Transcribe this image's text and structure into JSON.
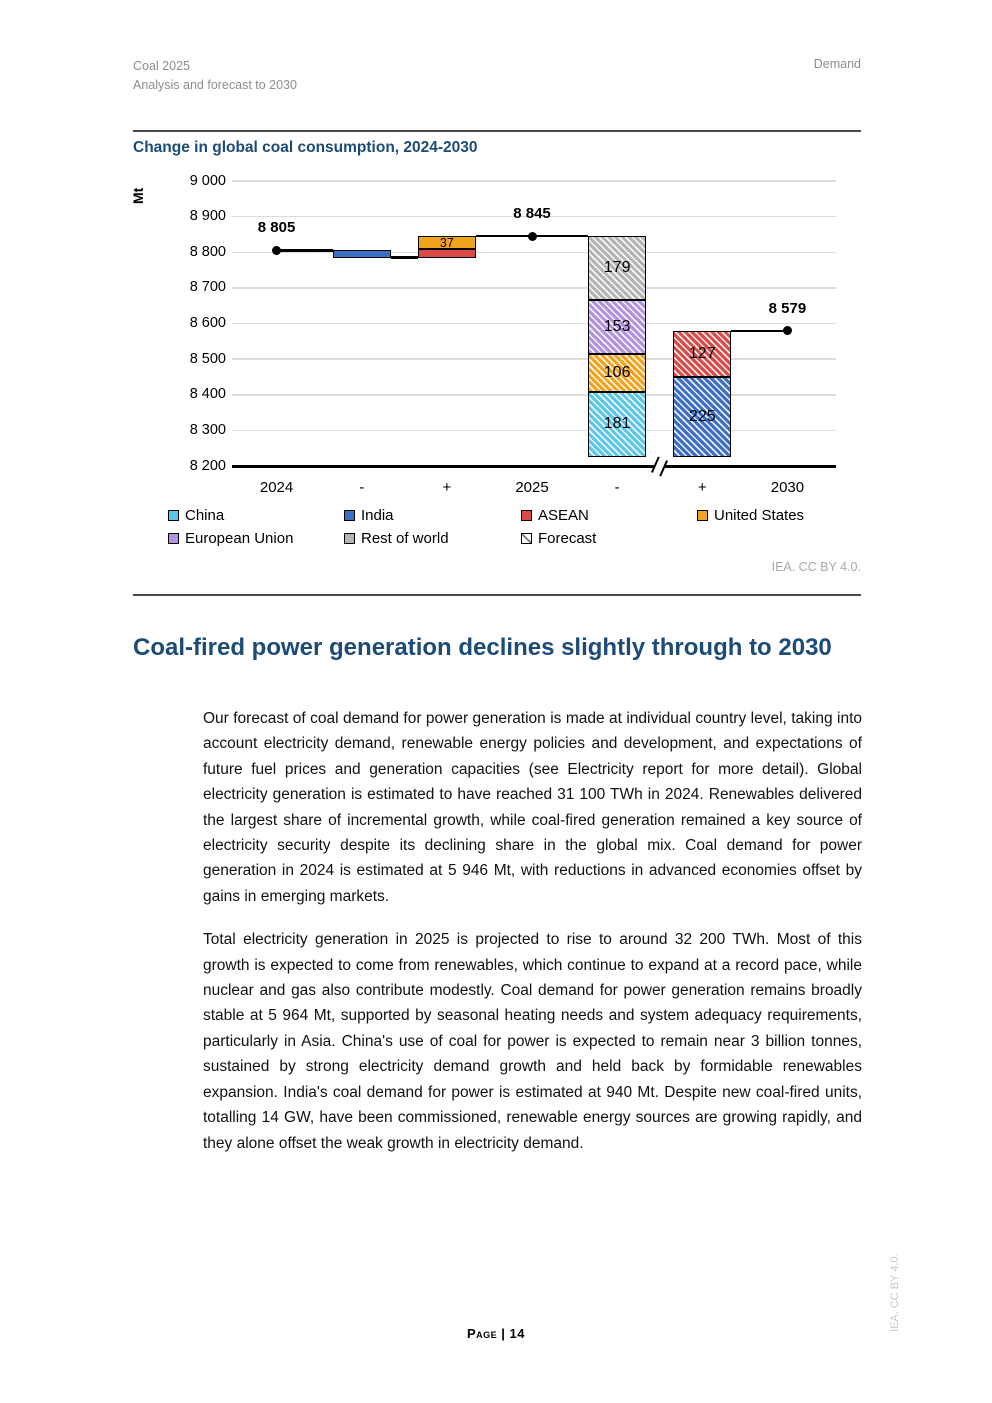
{
  "header": {
    "doc_title": "Coal 2025",
    "doc_subtitle": "Analysis and forecast to 2030",
    "chapter": "Demand"
  },
  "figure": {
    "title": "Change in global coal consumption, 2024-2030",
    "credit": "IEA. CC BY 4.0."
  },
  "chart_data": {
    "type": "waterfall",
    "title": "Change in global coal consumption, 2024-2030",
    "unit": "Mt",
    "x_categories": [
      "2024",
      "-",
      "+",
      "2025",
      "-",
      "+",
      "2030"
    ],
    "y_axis": {
      "min": 8200,
      "max": 9000,
      "step": 100,
      "tick_labels": [
        "9 000",
        "8 900",
        "8 800",
        "8 700",
        "8 600",
        "8 500",
        "8 400",
        "8 300",
        "8 200"
      ]
    },
    "anchors": [
      {
        "category_index": 0,
        "value": 8805,
        "label": "8 805"
      },
      {
        "category_index": 3,
        "value": 8845,
        "label": "8 845"
      },
      {
        "category_index": 6,
        "value": 8579,
        "label": "8 579"
      }
    ],
    "segments": [
      {
        "column": 1,
        "series": "India",
        "change": -20,
        "from": 8805,
        "to": 8785,
        "label": "",
        "hatched": false
      },
      {
        "column": 2,
        "series": "ASEAN",
        "change": 23,
        "from": 8785,
        "to": 8808,
        "label": "",
        "hatched": false
      },
      {
        "column": 2,
        "series": "United States",
        "change": 37,
        "from": 8808,
        "to": 8845,
        "label": "37",
        "hatched": false
      },
      {
        "column": 4,
        "series": "Rest of world",
        "change": -179,
        "from": 8845,
        "to": 8666,
        "label": "179",
        "hatched": true
      },
      {
        "column": 4,
        "series": "European Union",
        "change": -153,
        "from": 8666,
        "to": 8513,
        "label": "153",
        "hatched": true
      },
      {
        "column": 4,
        "series": "United States",
        "change": -106,
        "from": 8513,
        "to": 8407,
        "label": "106",
        "hatched": true
      },
      {
        "column": 4,
        "series": "China",
        "change": -181,
        "from": 8407,
        "to": 8226,
        "label": "181",
        "hatched": true
      },
      {
        "column": 5,
        "series": "ASEAN",
        "change": 127,
        "from": 8578,
        "to": 8451,
        "label": "127",
        "hatched": true
      },
      {
        "column": 5,
        "series": "India",
        "change": 225,
        "from": 8451,
        "to": 8226,
        "label": "225",
        "hatched": true
      }
    ],
    "connectors": [
      {
        "value": 8805,
        "from": {
          "col": 0,
          "at": "center"
        },
        "to": {
          "col": 1,
          "at": "left"
        }
      },
      {
        "value": 8785,
        "from": {
          "col": 1,
          "at": "right"
        },
        "to": {
          "col": 2,
          "at": "left"
        }
      },
      {
        "value": 8845,
        "from": {
          "col": 2,
          "at": "right"
        },
        "to": {
          "col": 4,
          "at": "left"
        }
      },
      {
        "value": 8578,
        "from": {
          "col": 5,
          "at": "right"
        },
        "to": {
          "col": 6,
          "at": "center"
        }
      }
    ],
    "axis_break_between_columns": [
      4,
      5
    ],
    "series_colors": {
      "China": "#5BC6E8",
      "India": "#3C6EC5",
      "ASEAN": "#DB4A47",
      "United States": "#F0A31D",
      "European Union": "#B292E0",
      "Rest of world": "#B4B4B4"
    },
    "legend": [
      {
        "label": "China",
        "swatch": "China",
        "row": 0,
        "col": 0
      },
      {
        "label": "India",
        "swatch": "India",
        "row": 0,
        "col": 1
      },
      {
        "label": "ASEAN",
        "swatch": "ASEAN",
        "row": 0,
        "col": 2
      },
      {
        "label": "United States",
        "swatch": "United States",
        "row": 0,
        "col": 3
      },
      {
        "label": "European Union",
        "swatch": "European Union",
        "row": 1,
        "col": 0
      },
      {
        "label": "Rest of world",
        "swatch": "Rest of world",
        "row": 1,
        "col": 1
      },
      {
        "label": "Forecast",
        "swatch": "forecast",
        "row": 1,
        "col": 2
      }
    ]
  },
  "main": {
    "heading": "Coal-fired power generation declines slightly through to 2030",
    "paragraphs": [
      "Our forecast of coal demand for power generation is made at individual country level, taking into account electricity demand, renewable energy policies and development, and expectations of future fuel prices and generation capacities (see Electricity report for more detail). Global electricity generation is estimated to have reached 31 100 TWh in 2024. Renewables delivered the largest share of incremental growth, while coal-fired generation remained a key source of electricity security despite its declining share in the global mix. Coal demand for power generation in 2024 is estimated at 5 946 Mt, with reductions in advanced economies offset by gains in emerging markets.",
      "Total electricity generation in 2025 is projected to rise to around 32 200 TWh. Most of this growth is expected to come from renewables, which continue to expand at a record pace, while nuclear and gas also contribute modestly. Coal demand for power generation remains broadly stable at 5 964 Mt, supported by seasonal heating needs and system adequacy requirements, particularly in Asia. China's use of coal for power is expected to remain near 3 billion tonnes, sustained by strong electricity demand growth and held back by formidable renewables expansion. India's coal demand for power is estimated at 940 Mt. Despite new coal-fired units, totalling 14 GW, have been commissioned, renewable energy sources are growing rapidly, and they alone offset the weak growth in electricity demand."
    ]
  },
  "footer": {
    "page_label": "Page | 14",
    "side_credit": "IEA. CC BY 4.0."
  }
}
